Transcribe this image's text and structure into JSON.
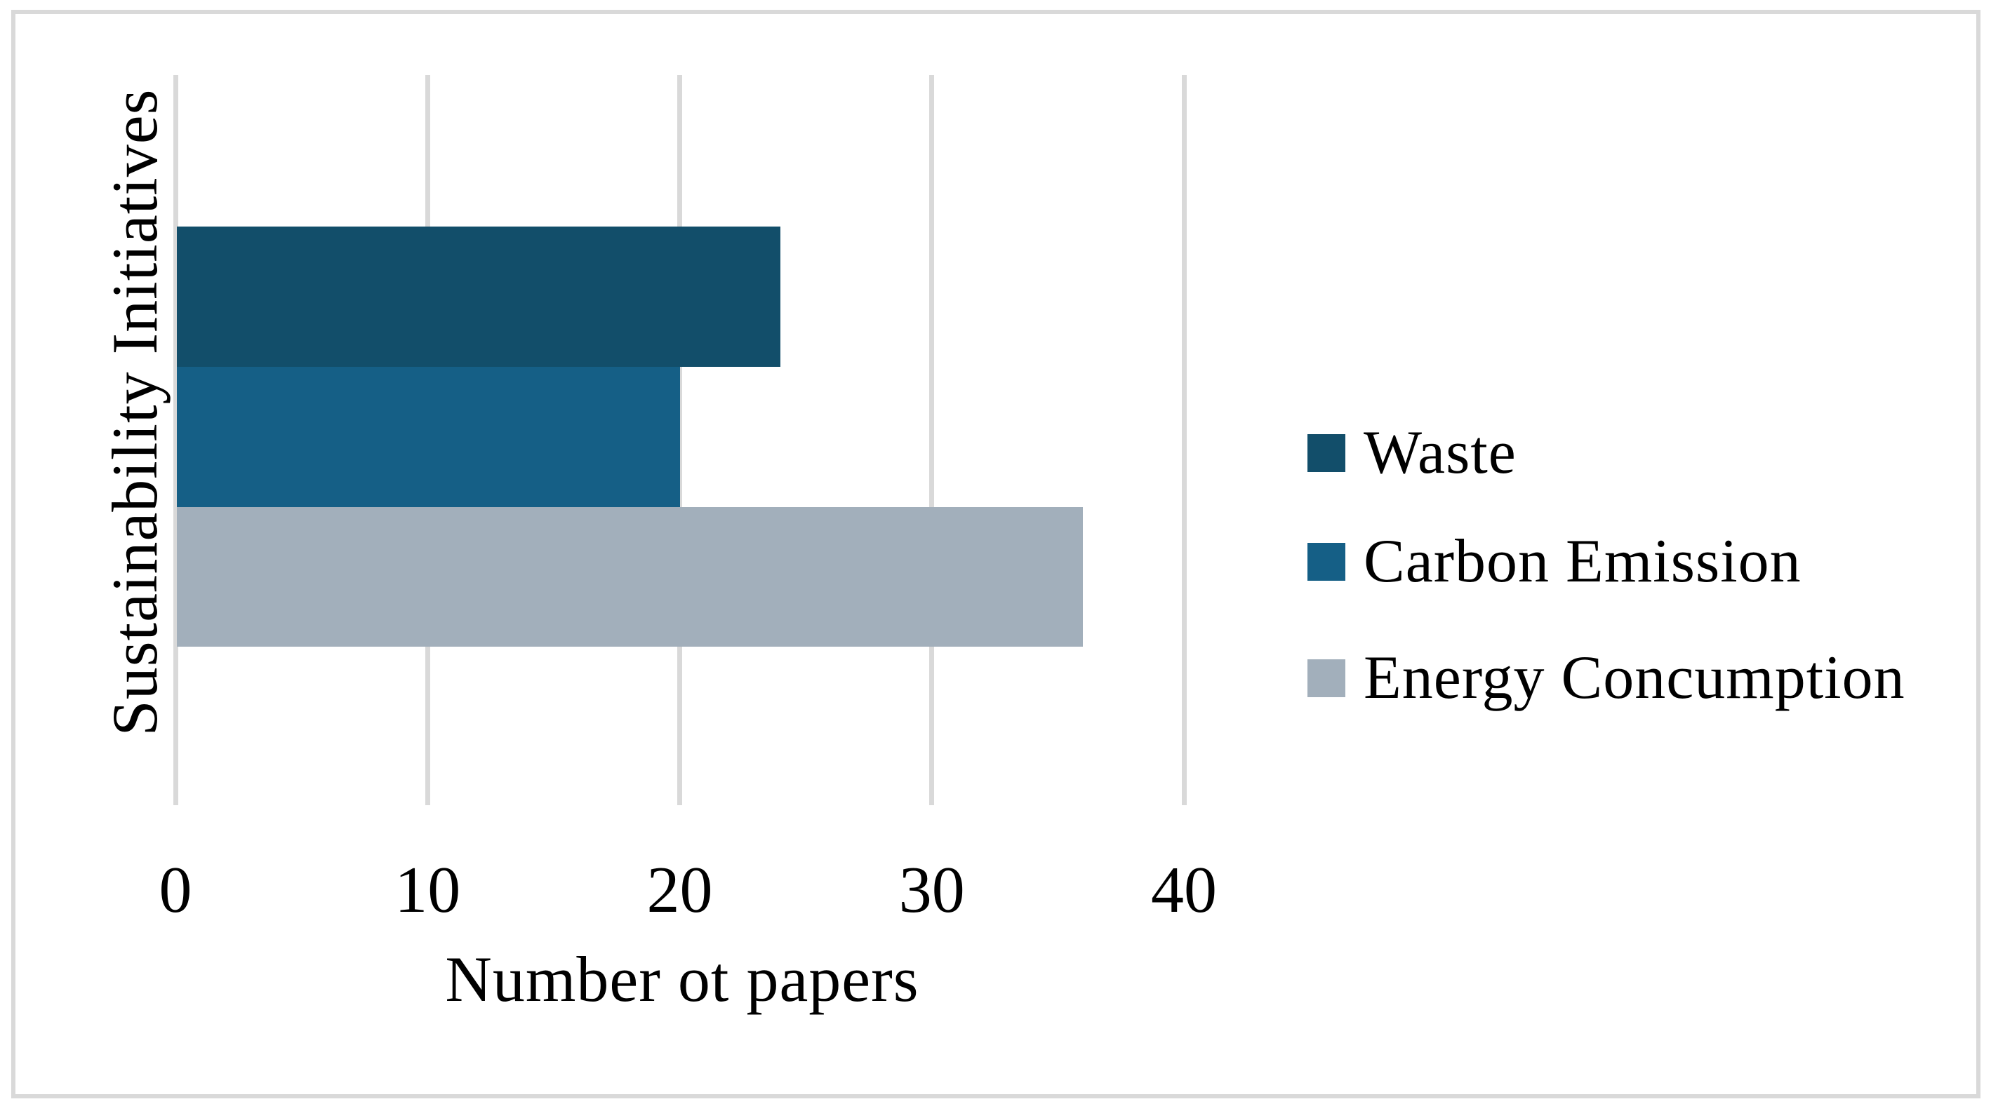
{
  "figure": {
    "background": "#ffffff",
    "border_color": "#d9d9d9",
    "gridline_color": "#d9d9d9",
    "text_color": "#000000"
  },
  "chart_data": {
    "type": "bar",
    "orientation": "horizontal",
    "title": "",
    "xlabel": "Number ot papers",
    "ylabel": "Sustainability Initiatives",
    "categories": [
      "Waste",
      "Carbon Emission",
      "Energy Concumption"
    ],
    "series": [
      {
        "name": "Waste",
        "value": 24,
        "color": "#124e6a"
      },
      {
        "name": "Carbon Emission",
        "value": 20,
        "color": "#155f86"
      },
      {
        "name": "Energy Concumption",
        "value": 36,
        "color": "#a2afbb"
      }
    ],
    "xticks": [
      "0",
      "10",
      "20",
      "30",
      "40"
    ],
    "xtick_values": [
      0,
      10,
      20,
      30,
      40
    ],
    "xlim": [
      0,
      40
    ],
    "grid": true,
    "legend_position": "right"
  }
}
